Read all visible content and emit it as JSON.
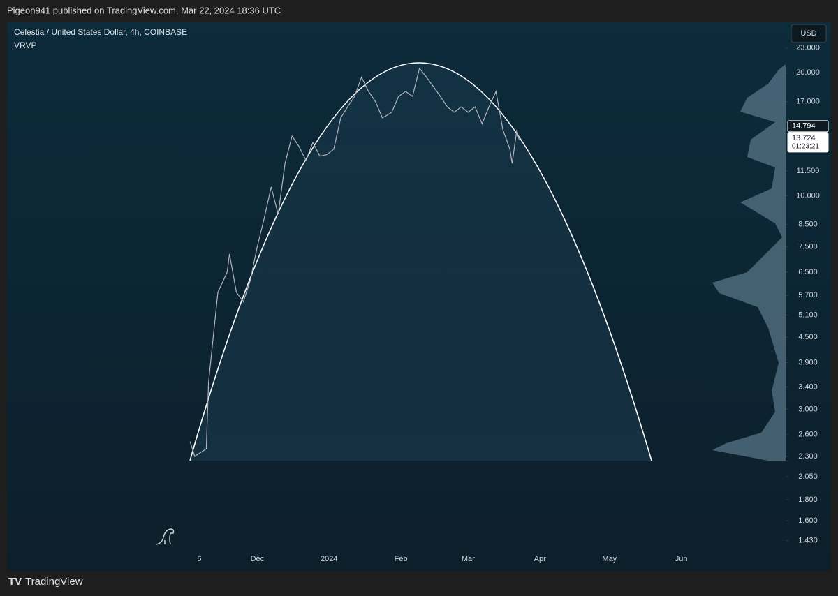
{
  "header": "Pigeon941 published on TradingView.com, Mar 22, 2024 18:36 UTC",
  "footer": "TradingView",
  "chart_data": {
    "type": "line",
    "title": "Celestia / United States Dollar, 4h, COINBASE",
    "indicator": "VRVP",
    "currency": "USD",
    "color": "#b2b5be",
    "log_scale": true,
    "x": [
      -60,
      -58,
      -53,
      -52,
      -50,
      -48,
      -44,
      -43,
      -40,
      -37,
      -34,
      -31,
      -28,
      -25,
      -22,
      -19,
      -16,
      -13,
      -10,
      -7,
      -4,
      -1,
      2,
      5,
      8,
      11,
      14,
      17,
      20,
      23,
      27,
      30,
      33,
      36,
      39,
      42,
      45,
      48,
      51,
      54,
      57,
      60,
      63,
      66,
      69,
      72,
      75,
      78,
      79,
      81,
      82
    ],
    "values": [
      2.5,
      2.3,
      2.4,
      3.5,
      4.5,
      5.8,
      6.5,
      7.2,
      5.8,
      5.5,
      6.2,
      7.5,
      8.8,
      10.5,
      9.0,
      12,
      14,
      13.2,
      12.2,
      13.5,
      12.5,
      12.6,
      13,
      15.5,
      16.5,
      17.5,
      19.5,
      18,
      17,
      15.5,
      16,
      17.5,
      18,
      17.5,
      20.5,
      19.5,
      18.5,
      17.5,
      16.5,
      16,
      16.5,
      16,
      16.5,
      15,
      16.5,
      18,
      14.5,
      13,
      12,
      14.5,
      13.7
    ],
    "xlim": [
      -139,
      197
    ],
    "xticks": [
      {
        "value": -56,
        "label": "6"
      },
      {
        "value": -31,
        "label": "Dec"
      },
      {
        "value": 0,
        "label": "2024"
      },
      {
        "value": 31,
        "label": "Feb"
      },
      {
        "value": 60,
        "label": "Mar"
      },
      {
        "value": 91,
        "label": "Apr"
      },
      {
        "value": 121,
        "label": "May"
      },
      {
        "value": 152,
        "label": "Jun"
      }
    ],
    "ylim": [
      1.32,
      23.8
    ],
    "yticks": [
      {
        "value": 23,
        "label": "23.000"
      },
      {
        "value": 20,
        "label": "20.000"
      },
      {
        "value": 17,
        "label": "17.000"
      },
      {
        "value": 11.5,
        "label": "11.500"
      },
      {
        "value": 10,
        "label": "10.000"
      },
      {
        "value": 8.5,
        "label": "8.500"
      },
      {
        "value": 7.5,
        "label": "7.500"
      },
      {
        "value": 6.5,
        "label": "6.500"
      },
      {
        "value": 5.7,
        "label": "5.700"
      },
      {
        "value": 5.1,
        "label": "5.100"
      },
      {
        "value": 4.5,
        "label": "4.500"
      },
      {
        "value": 3.9,
        "label": "3.900"
      },
      {
        "value": 3.4,
        "label": "3.400"
      },
      {
        "value": 3,
        "label": "3.000"
      },
      {
        "value": 2.6,
        "label": "2.600"
      },
      {
        "value": 2.3,
        "label": "2.300"
      },
      {
        "value": 2.05,
        "label": "2.050"
      },
      {
        "value": 1.8,
        "label": "1.800"
      },
      {
        "value": 1.6,
        "label": "1.600"
      },
      {
        "value": 1.43,
        "label": "1.430"
      }
    ],
    "price_labels": [
      {
        "value": 14.794,
        "label": "14.794"
      },
      {
        "value": 13.724,
        "label": "13.724"
      }
    ],
    "countdown": "01:23:21"
  }
}
